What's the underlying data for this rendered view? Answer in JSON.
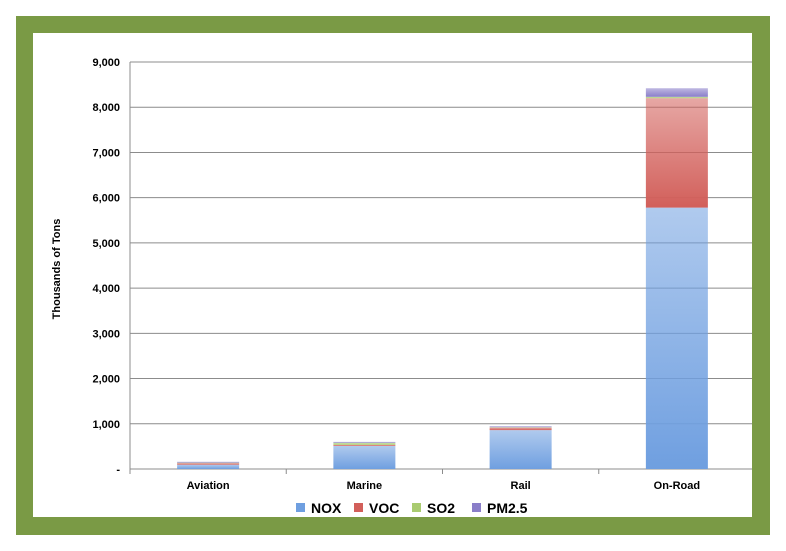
{
  "chart_data": {
    "type": "bar",
    "stacked": true,
    "categories": [
      "Aviation",
      "Marine",
      "Rail",
      "On-Road"
    ],
    "series": [
      {
        "name": "NOX",
        "color": "#6f9fe0",
        "values": [
          95,
          510,
          860,
          5780
        ]
      },
      {
        "name": "VOC",
        "color": "#d25f5a",
        "values": [
          35,
          25,
          55,
          2420
        ]
      },
      {
        "name": "SO2",
        "color": "#a9cb70",
        "values": [
          10,
          45,
          10,
          30
        ]
      },
      {
        "name": "PM2.5",
        "color": "#8a7ec9",
        "values": [
          20,
          20,
          20,
          190
        ]
      }
    ],
    "ylabel": "Thousands of Tons",
    "xlabel": "",
    "ylim": [
      0,
      9000
    ],
    "yticks": [
      0,
      1000,
      2000,
      3000,
      4000,
      5000,
      6000,
      7000,
      8000,
      9000
    ],
    "ytick_labels": [
      "-",
      "1,000",
      "2,000",
      "3,000",
      "4,000",
      "5,000",
      "6,000",
      "7,000",
      "8,000",
      "9,000"
    ],
    "grid": true,
    "legend_position": "bottom"
  },
  "colors": {
    "frame": "#7a9a45",
    "grid": "#8c8c8c"
  }
}
